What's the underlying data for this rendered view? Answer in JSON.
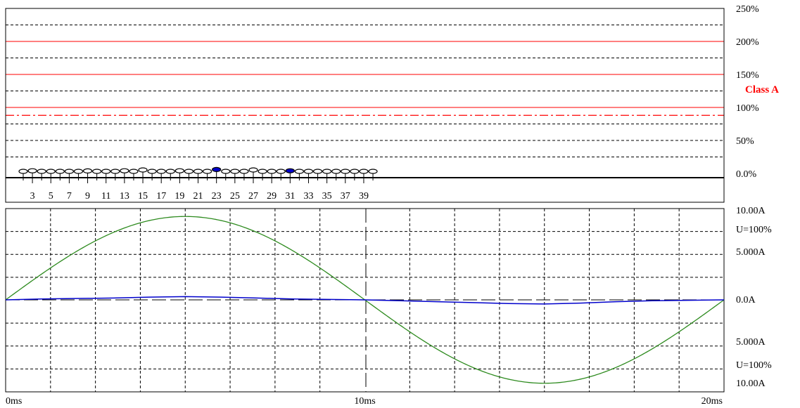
{
  "colors": {
    "background": "#ffffff",
    "grid": "#000000",
    "limit": "#ff0000",
    "bar_marker": "#000000",
    "bar_highlight": "#0000cc",
    "waveform_voltage": "#2e8b1f",
    "waveform_current": "#0000cc",
    "reference": "#000000"
  },
  "chart_data": [
    {
      "type": "bar",
      "panel": "harmonics",
      "categories": [
        2,
        3,
        4,
        5,
        6,
        7,
        8,
        9,
        10,
        11,
        12,
        13,
        14,
        15,
        16,
        17,
        18,
        19,
        20,
        21,
        22,
        23,
        24,
        25,
        26,
        27,
        28,
        29,
        30,
        31,
        32,
        33,
        34,
        35,
        36,
        37,
        38,
        39,
        40
      ],
      "tick_labels": [
        "3",
        "5",
        "7",
        "9",
        "11",
        "13",
        "15",
        "17",
        "19",
        "21",
        "23",
        "25",
        "27",
        "29",
        "31",
        "33",
        "35",
        "37",
        "39"
      ],
      "series": [
        {
          "values": [
            0.0,
            0.4,
            0.0,
            0.0,
            0.0,
            0.0,
            0.0,
            0.3,
            0.0,
            0.0,
            0.0,
            0.4,
            0.0,
            1.0,
            0.0,
            0.0,
            0.0,
            0.4,
            0.0,
            0.0,
            0.0,
            1.3,
            0.0,
            0.0,
            0.0,
            1.0,
            0.0,
            0.0,
            0.0,
            0.4,
            0.0,
            0.0,
            0.0,
            0.0,
            0.0,
            0.0,
            0.0,
            0.0,
            0.0
          ]
        }
      ],
      "highlighted_categories": [
        23,
        31
      ],
      "right_labels": [
        "250%",
        "200%",
        "150%",
        "100%",
        "50%",
        "0.0%"
      ],
      "right_label_values": [
        250,
        200,
        150,
        100,
        50,
        0
      ],
      "ylim": [
        0,
        250
      ],
      "limits": {
        "solid": [
          200,
          150,
          100
        ],
        "dash_dot": [
          88
        ]
      },
      "limit_label": "Class A",
      "grid": true
    },
    {
      "type": "line",
      "panel": "waveform",
      "x_tick_labels": [
        "0ms",
        "10ms",
        "20ms"
      ],
      "x_tick_values": [
        0,
        10,
        20
      ],
      "xlim": [
        0,
        20
      ],
      "ylim": [
        -10,
        10
      ],
      "right_labels": [
        "10.00A",
        "U=100%",
        "5.000A",
        "0.0A",
        "5.000A",
        "U=100%",
        "10.00A"
      ],
      "series": [
        {
          "kind": "voltage",
          "amplitude": 9.1,
          "shape": "sine",
          "period_ms": 20
        },
        {
          "kind": "current",
          "x": [
            0,
            1,
            2,
            3,
            4,
            5,
            6,
            7,
            8,
            9,
            10,
            11,
            12,
            13,
            14,
            15,
            16,
            17,
            18,
            19,
            20
          ],
          "values": [
            0.0,
            0.1,
            0.15,
            0.2,
            0.3,
            0.35,
            0.3,
            0.2,
            0.1,
            0.05,
            0.0,
            -0.1,
            -0.2,
            -0.3,
            -0.4,
            -0.45,
            -0.35,
            -0.2,
            -0.1,
            -0.05,
            0.0
          ]
        }
      ],
      "reference_line": 0,
      "grid": true
    }
  ]
}
